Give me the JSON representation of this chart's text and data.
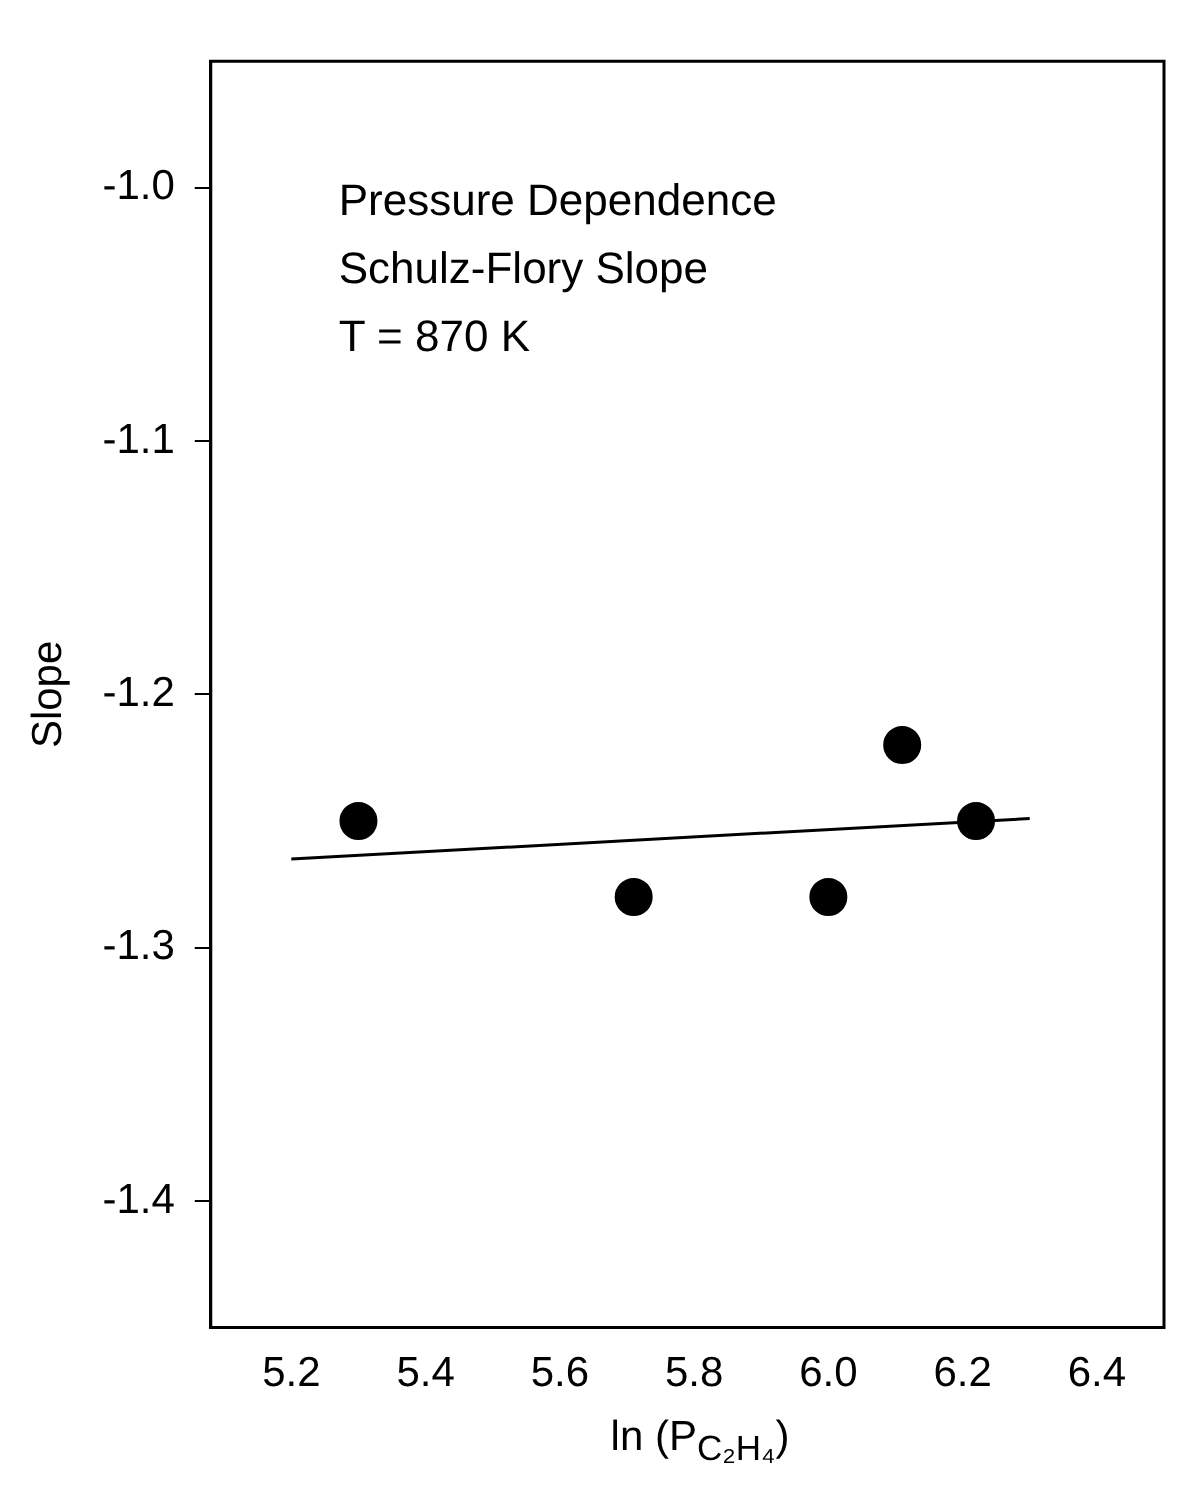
{
  "chart_data": {
    "type": "scatter",
    "annotations": [
      "Pressure Dependence",
      "Schulz-Flory Slope",
      "T = 870 K"
    ],
    "xlabel": "ln (P$_{C₂H₄}$)",
    "ylabel": "Slope",
    "xlim": [
      5.08,
      6.5
    ],
    "xticks": [
      5.2,
      5.4,
      5.6,
      5.8,
      {
        "value": 6,
        "label": "6.0"
      },
      6.2,
      6.4
    ],
    "ylim": [
      -1.45,
      -0.95
    ],
    "yticks": [
      -1.4,
      -1.3,
      -1.2,
      -1.1,
      {
        "value": -1,
        "label": "-1.0"
      }
    ],
    "series": [
      {
        "marker": "circle",
        "color": "#000000",
        "x": [
          5.3,
          5.71,
          6.0,
          6.11,
          6.22
        ],
        "values": [
          -1.25,
          -1.28,
          -1.28,
          -1.22,
          -1.25
        ]
      },
      {
        "type": "line",
        "marker": "none",
        "color": "#000000",
        "line_style": "solid",
        "x": [
          5.2,
          6.3
        ],
        "values": [
          -1.265,
          -1.249
        ]
      }
    ]
  }
}
